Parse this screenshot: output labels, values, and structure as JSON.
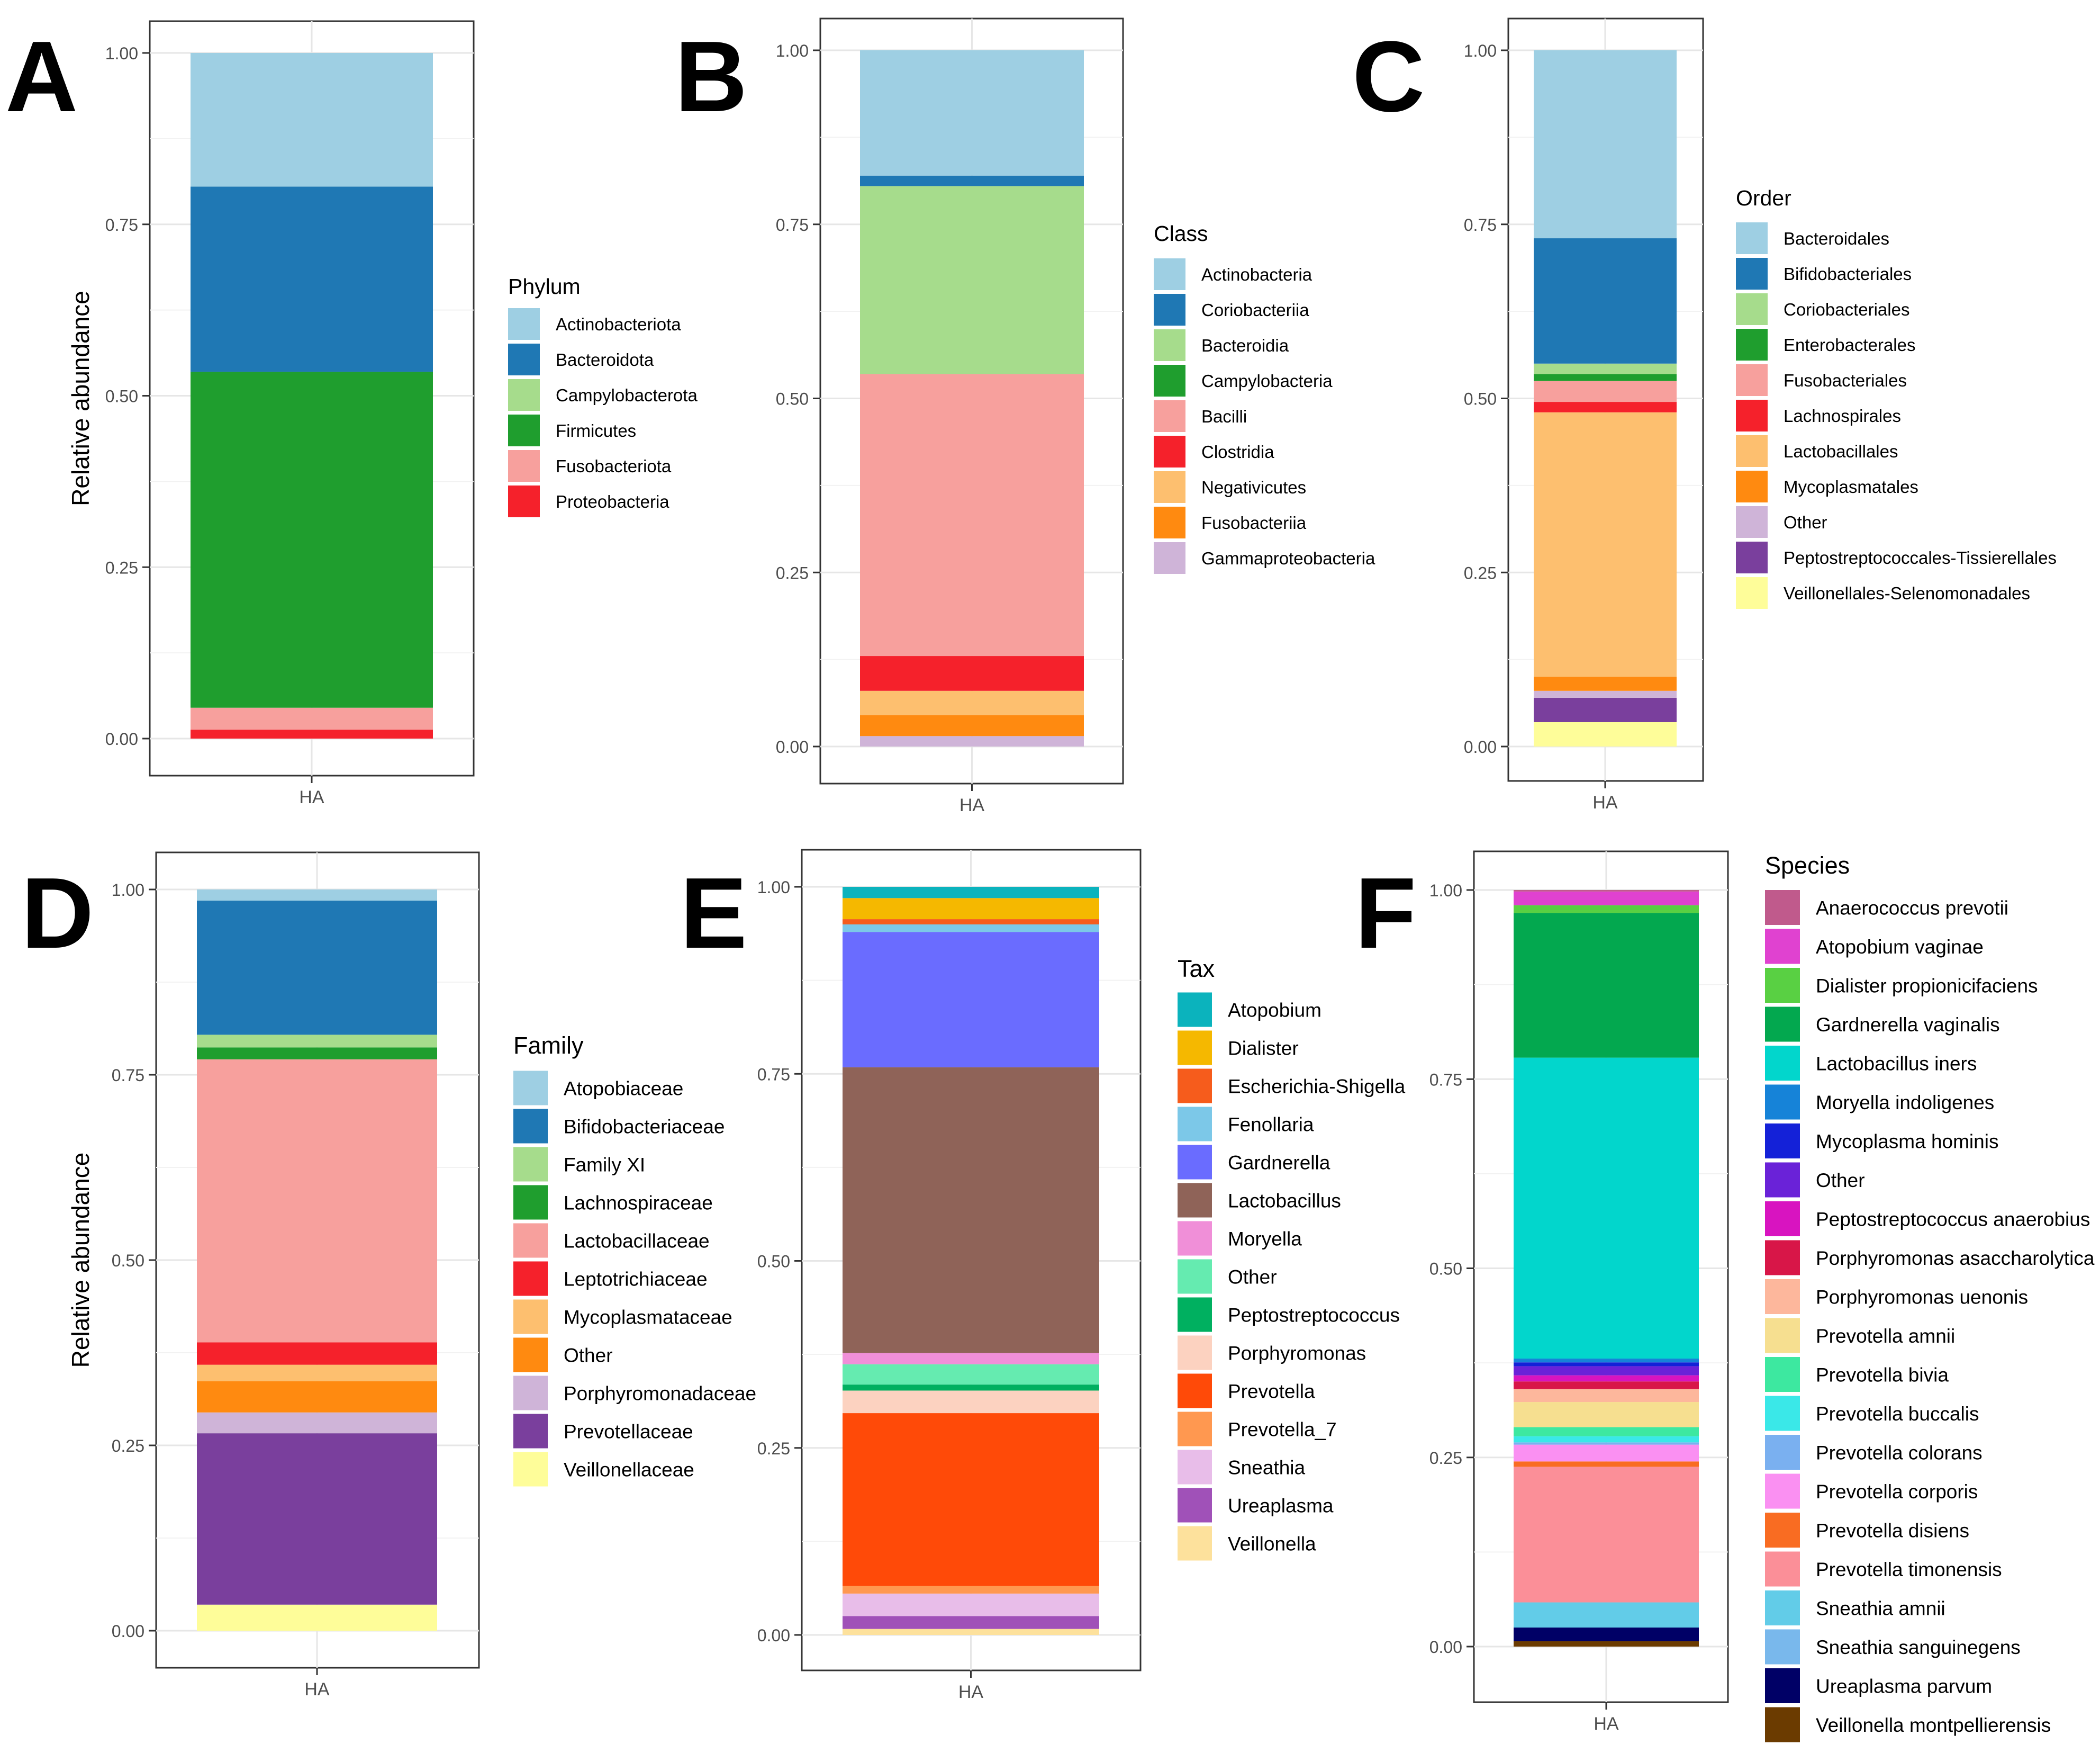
{
  "figure": {
    "panels": [
      "A",
      "B",
      "C",
      "D",
      "E",
      "F"
    ]
  },
  "chart_data": [
    {
      "type": "bar",
      "panel": "A",
      "ylabel": "Relative abundance",
      "xlabel": "",
      "categories": [
        "HA"
      ],
      "ylim": [
        0,
        1
      ],
      "yticks": [
        "0.00",
        "0.25",
        "0.50",
        "0.75",
        "1.00"
      ],
      "legend_title": "Phylum",
      "legend_position": "right",
      "series": [
        {
          "name": "Actinobacteriota",
          "color": "#9ecfe3",
          "values": [
            0.195
          ]
        },
        {
          "name": "Bacteroidota",
          "color": "#1f78b4",
          "values": [
            0.27
          ]
        },
        {
          "name": "Campylobacterota",
          "color": "#a6dc8c",
          "values": [
            0.0
          ]
        },
        {
          "name": "Firmicutes",
          "color": "#1f9e2e",
          "values": [
            0.49
          ]
        },
        {
          "name": "Fusobacteriota",
          "color": "#f7a09d",
          "values": [
            0.032
          ]
        },
        {
          "name": "Proteobacteria",
          "color": "#f5212b",
          "values": [
            0.013
          ]
        }
      ]
    },
    {
      "type": "bar",
      "panel": "B",
      "ylabel": "",
      "xlabel": "",
      "categories": [
        "HA"
      ],
      "ylim": [
        0,
        1
      ],
      "yticks": [
        "0.00",
        "0.25",
        "0.50",
        "0.75",
        "1.00"
      ],
      "legend_title": "Class",
      "legend_position": "right",
      "series": [
        {
          "name": "Actinobacteria",
          "color": "#9ecfe3",
          "values": [
            0.18
          ]
        },
        {
          "name": "Coriobacteriia",
          "color": "#1f78b4",
          "values": [
            0.015
          ]
        },
        {
          "name": "Bacteroidia",
          "color": "#a6dc8c",
          "values": [
            0.27
          ]
        },
        {
          "name": "Campylobacteria",
          "color": "#1f9e2e",
          "values": [
            0.0
          ]
        },
        {
          "name": "Bacilli",
          "color": "#f7a09d",
          "values": [
            0.405
          ]
        },
        {
          "name": "Clostridia",
          "color": "#f5212b",
          "values": [
            0.05
          ]
        },
        {
          "name": "Negativicutes",
          "color": "#fdbf6f",
          "values": [
            0.035
          ]
        },
        {
          "name": "Fusobacteriia",
          "color": "#ff8a10",
          "values": [
            0.03
          ]
        },
        {
          "name": "Gammaproteobacteria",
          "color": "#cfb4d8",
          "values": [
            0.015
          ]
        }
      ]
    },
    {
      "type": "bar",
      "panel": "C",
      "ylabel": "",
      "xlabel": "",
      "categories": [
        "HA"
      ],
      "ylim": [
        0,
        1
      ],
      "yticks": [
        "0.00",
        "0.25",
        "0.50",
        "0.75",
        "1.00"
      ],
      "legend_title": "Order",
      "legend_position": "right",
      "series": [
        {
          "name": "Bacteroidales",
          "color": "#9ecfe3",
          "values": [
            0.27
          ]
        },
        {
          "name": "Bifidobacteriales",
          "color": "#1f78b4",
          "values": [
            0.18
          ]
        },
        {
          "name": "Coriobacteriales",
          "color": "#a6dc8c",
          "values": [
            0.015
          ]
        },
        {
          "name": "Enterobacterales",
          "color": "#1f9e2e",
          "values": [
            0.01
          ]
        },
        {
          "name": "Fusobacteriales",
          "color": "#f7a09d",
          "values": [
            0.03
          ]
        },
        {
          "name": "Lachnospirales",
          "color": "#f5212b",
          "values": [
            0.015
          ]
        },
        {
          "name": "Lactobacillales",
          "color": "#fdbf6f",
          "values": [
            0.38
          ]
        },
        {
          "name": "Mycoplasmatales",
          "color": "#ff8a10",
          "values": [
            0.02
          ]
        },
        {
          "name": "Other",
          "color": "#cfb4d8",
          "values": [
            0.01
          ]
        },
        {
          "name": "Peptostreptococcales-Tissierellales",
          "color": "#7a3f9d",
          "values": [
            0.035
          ]
        },
        {
          "name": "Veillonellales-Selenomonadales",
          "color": "#fefd99",
          "values": [
            0.035
          ]
        }
      ]
    },
    {
      "type": "bar",
      "panel": "D",
      "ylabel": "Relative abundance",
      "xlabel": "",
      "categories": [
        "HA"
      ],
      "ylim": [
        0,
        1
      ],
      "yticks": [
        "0.00",
        "0.25",
        "0.50",
        "0.75",
        "1.00"
      ],
      "legend_title": "Family",
      "legend_position": "right",
      "series": [
        {
          "name": "Atopobiaceae",
          "color": "#9ecfe3",
          "values": [
            0.015
          ]
        },
        {
          "name": "Bifidobacteriaceae",
          "color": "#1f78b4",
          "values": [
            0.18
          ]
        },
        {
          "name": "Family XI",
          "color": "#a6dc8c",
          "values": [
            0.017
          ]
        },
        {
          "name": "Lachnospiraceae",
          "color": "#1f9e2e",
          "values": [
            0.016
          ]
        },
        {
          "name": "Lactobacillaceae",
          "color": "#f7a09d",
          "values": [
            0.38
          ]
        },
        {
          "name": "Leptotrichiaceae",
          "color": "#f5212b",
          "values": [
            0.03
          ]
        },
        {
          "name": "Mycoplasmataceae",
          "color": "#fdbf6f",
          "values": [
            0.022
          ]
        },
        {
          "name": "Other",
          "color": "#ff8a10",
          "values": [
            0.042
          ]
        },
        {
          "name": "Porphyromonadaceae",
          "color": "#cfb4d8",
          "values": [
            0.028
          ]
        },
        {
          "name": "Prevotellaceae",
          "color": "#7a3f9d",
          "values": [
            0.23
          ]
        },
        {
          "name": "Veillonellaceae",
          "color": "#fefd99",
          "values": [
            0.035
          ]
        }
      ]
    },
    {
      "type": "bar",
      "panel": "E",
      "ylabel": "",
      "xlabel": "",
      "categories": [
        "HA"
      ],
      "ylim": [
        0,
        1
      ],
      "yticks": [
        "0.00",
        "0.25",
        "0.50",
        "0.75",
        "1.00"
      ],
      "legend_title": "Tax",
      "legend_position": "right",
      "series": [
        {
          "name": "Atopobium",
          "color": "#0bb3bd",
          "values": [
            0.015
          ]
        },
        {
          "name": "Dialister",
          "color": "#f5b800",
          "values": [
            0.028
          ]
        },
        {
          "name": "Escherichia-Shigella",
          "color": "#f65c1c",
          "values": [
            0.007
          ]
        },
        {
          "name": "Fenollaria",
          "color": "#7cc8e8",
          "values": [
            0.01
          ]
        },
        {
          "name": "Gardnerella",
          "color": "#6a6cff",
          "values": [
            0.18
          ]
        },
        {
          "name": "Lactobacillus",
          "color": "#8f6358",
          "values": [
            0.38
          ]
        },
        {
          "name": "Moryella",
          "color": "#f08fd8",
          "values": [
            0.015
          ]
        },
        {
          "name": "Other",
          "color": "#65ebb0",
          "values": [
            0.027
          ]
        },
        {
          "name": "Peptostreptococcus",
          "color": "#00b060",
          "values": [
            0.008
          ]
        },
        {
          "name": "Porphyromonas",
          "color": "#fcd2c0",
          "values": [
            0.03
          ]
        },
        {
          "name": "Prevotella",
          "color": "#ff4a08",
          "values": [
            0.23
          ]
        },
        {
          "name": "Prevotella_7",
          "color": "#ff9850",
          "values": [
            0.01
          ]
        },
        {
          "name": "Sneathia",
          "color": "#e8bde9",
          "values": [
            0.03
          ]
        },
        {
          "name": "Ureaplasma",
          "color": "#a051b8",
          "values": [
            0.017
          ]
        },
        {
          "name": "Veillonella",
          "color": "#fde19c",
          "values": [
            0.008
          ]
        }
      ]
    },
    {
      "type": "bar",
      "panel": "F",
      "ylabel": "",
      "xlabel": "",
      "categories": [
        "HA"
      ],
      "ylim": [
        0,
        1
      ],
      "yticks": [
        "0.00",
        "0.25",
        "0.50",
        "0.75",
        "1.00"
      ],
      "legend_title": "Species",
      "legend_position": "right",
      "series": [
        {
          "name": "Anaerococcus prevotii",
          "color": "#c05a8c",
          "values": [
            0.002
          ]
        },
        {
          "name": "Atopobium vaginae",
          "color": "#e042d0",
          "values": [
            0.018
          ]
        },
        {
          "name": "Dialister propionicifaciens",
          "color": "#59d043",
          "values": [
            0.01
          ]
        },
        {
          "name": "Gardnerella vaginalis",
          "color": "#03a84f",
          "values": [
            0.19
          ]
        },
        {
          "name": "Lactobacillus iners",
          "color": "#02d6cc",
          "values": [
            0.395
          ]
        },
        {
          "name": "Moryella indoligenes",
          "color": "#1683d8",
          "values": [
            0.005
          ]
        },
        {
          "name": "Mycoplasma hominis",
          "color": "#1421d8",
          "values": [
            0.005
          ]
        },
        {
          "name": "Other",
          "color": "#6a22d8",
          "values": [
            0.012
          ]
        },
        {
          "name": "Peptostreptococcus anaerobius",
          "color": "#d814c0",
          "values": [
            0.008
          ]
        },
        {
          "name": "Porphyromonas asaccharolytica",
          "color": "#d81648",
          "values": [
            0.01
          ]
        },
        {
          "name": "Porphyromonas uenonis",
          "color": "#fdb79c",
          "values": [
            0.017
          ]
        },
        {
          "name": "Prevotella amnii",
          "color": "#f6df90",
          "values": [
            0.033
          ]
        },
        {
          "name": "Prevotella bivia",
          "color": "#3de8a0",
          "values": [
            0.012
          ]
        },
        {
          "name": "Prevotella buccalis",
          "color": "#3ae8e8",
          "values": [
            0.008
          ]
        },
        {
          "name": "Prevotella colorans",
          "color": "#7ab0f0",
          "values": [
            0.003
          ]
        },
        {
          "name": "Prevotella corporis",
          "color": "#fa90f2",
          "values": [
            0.022
          ]
        },
        {
          "name": "Prevotella disiens",
          "color": "#f96c22",
          "values": [
            0.007
          ]
        },
        {
          "name": "Prevotella timonensis",
          "color": "#fb8f98",
          "values": [
            0.178
          ]
        },
        {
          "name": "Sneathia amnii",
          "color": "#62cce8",
          "values": [
            0.033
          ]
        },
        {
          "name": "Sneathia sanguinegens",
          "color": "#79b8ec",
          "values": [
            0.0
          ]
        },
        {
          "name": "Ureaplasma parvum",
          "color": "#000066",
          "values": [
            0.018
          ]
        },
        {
          "name": "Veillonella montpellierensis",
          "color": "#6b3b00",
          "values": [
            0.007
          ]
        }
      ]
    }
  ]
}
